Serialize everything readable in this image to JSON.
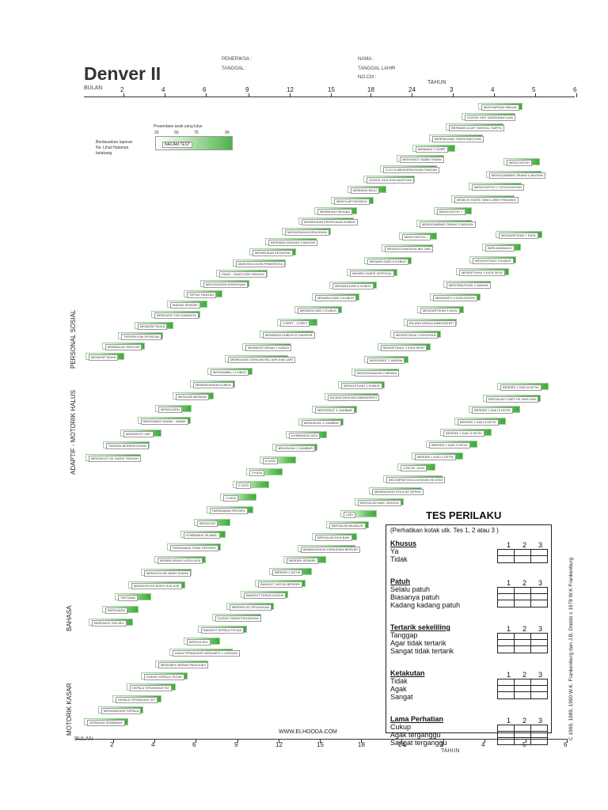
{
  "title": "Denver II",
  "header": {
    "pemeriksa": "PEMERIKSA :",
    "tanggal": "TANGGAL :",
    "nama": "NAMA :",
    "tanggal_lahir": "TANGGAL LAHIR",
    "no_cm": "NO.CM :"
  },
  "axis": {
    "bulan_label": "BULAN",
    "tahun_label": "TAHUN",
    "months": [
      "2",
      "4",
      "6",
      "9",
      "12",
      "15",
      "18",
      "24"
    ],
    "years": [
      "3",
      "4",
      "5",
      "6"
    ]
  },
  "legend": {
    "caption": "Prosentase anak yang lulus",
    "pcts": [
      "25",
      "50",
      "75",
      "90"
    ],
    "sample_item": "NACAM TEST",
    "note": "Berdasarkan laporan\nNo. Lihat Halaman\nbelakang"
  },
  "sections": {
    "personal_sosial": "PERSONAL SOSIAL",
    "motorik_halus": "ADAPTIF - MOTORIK HALUS",
    "bahasa": "BAHASA",
    "motorik_kasar": "MOTORIK KASAR"
  },
  "items": {
    "personal_sosial": [
      "MENYIAPKAN MAKAN",
      "GOSOK GIGI TANPA BANTUAN",
      "BERMAIN ULAR TANGGA / KARTU",
      "BERPAKAIAN TANPA BANTUAN",
      "MEMAKAI T-SHIRT",
      "MENYEBUT NAMA TEMAN",
      "CUCI & MENGERINGKAN TANGAN",
      "GOSOK GIGI DGN BANTUAN",
      "MEMAKAI BAJU",
      "MENYUAPI BONEKA",
      "MEMBUKA PAKAIAN",
      "MENIRUKAN PEKERJAAN RUMAH",
      "MENYATAKAN KEINGINAN",
      "BERMAIN DENGAN CANGGIR",
      "MENIRUKAN KEGIATAN",
      "MAIN BOLA DGN PEMERIKSA",
      "DAAG - DAAG DGN TANGAN",
      "MENYATAKAN KEINGINAN",
      "TEPUK TANGAN",
      "MAKAN SENDIRI",
      "BEREAKSI THD NAMANYA",
      "MENATAP MUKA",
      "TERSENYUM SPONTAN",
      "MEMBALAS SENYUM",
      "MENATAP MUKA"
    ],
    "motorik_halus": [
      "MENCONTOH",
      "MENGGAMBAR ORANG 6 BAGIAN",
      "MENCONTOH ☐ DITUNJUKKAN",
      "MEMILIH GARIS YANG LEBIH PANJANG",
      "MENCONTOH +",
      "MENGGAMBAR ORANG 3 BAGIAN",
      "MENCONTOH ○",
      "MENGGOYANGKAN IBU JARI",
      "MENARA DARI 8 KUBUS",
      "MENIRU GARIS VERTIKAL",
      "MENARA DARI 6 KUBUS",
      "MENARA DARI 4 KUBUS",
      "MENARA DARI 2 KUBUS",
      "CORET - CORET",
      "MENARUH KUBUS DI CANGKIR",
      "MEMBENTURKAN 2 KUBUS",
      "MEMEGANG DENGAN IBU JARI DAN JARI",
      "MENGAMBIL 2 KUBUS",
      "MEMINDAHKAN KUBUS",
      "MENCARI BENANG",
      "MENGGAPAI",
      "MENGAMATI MANIK - MANIK",
      "MENGIKUTI 180°",
      "TANGAN BERSENTUHAN",
      "MENGIKUTI KE GARIS TENGAH"
    ],
    "bahasa": [
      "MENGARTIKAN 7 KATA",
      "BERLAWANAN 2",
      "MENGHITUNG 5 KUBUS",
      "MENGETAHUI 3 KATA SIFAT",
      "MENYEBUTKAN 4 WARNA",
      "MENGERTI 4 KATA DEPAN",
      "MENGARTIKAN 5 KATA",
      "BICARA SEMUA DIMENGERTI",
      "MENGETAHUI 2 KEGIATAN",
      "MENGETAHUI 2 KATA SIFAT",
      "MENYEBUT 1 WARNA",
      "MENGGUNAKAN 2 BENDA",
      "MENGHITUNG 1 KUBUS",
      "BICARA DENGAN DIMENGERTI",
      "MENYEBUT 4 GAMBAR",
      "MENUNJUK 4 GAMBAR",
      "KOMBINASI KATA",
      "MENUNJUK 2 GAMBAR",
      "6 KATA",
      "3 KATA",
      "2 KATA",
      "1 KATA",
      "PAPA/MAMA SPESIFIK",
      "MENOCEH",
      "KOMBINASI SILABEL",
      "PAPA/MAMA TIDAK SPESIFIK",
      "MENIRU BUNYI KATA-KATA",
      "MENOLEH KE ARAH SUARA",
      "MENOLEH KE BUNYI ICIK-ICIK",
      "TERTAWA",
      "BERSUARA",
      "BEREAKSI THD BEL"
    ],
    "motorik_kasar": [
      "BERDIRI 1 KAKI 6 DETIK",
      "BERJALAN TUMIT KE JARI KAKI",
      "BERDIRI 1 KAKI 5 DETIK",
      "BERDIRI 1 KAKI 4 DETIK",
      "BERDIRI 1 KAKI 3 DETIK",
      "BERDIRI 1 KAKI 2 DETIK",
      "BERDIRI 1 KAKI 1 DETIK",
      "LONCAT JAUH",
      "MELEMPAR BOLA LENGAN KE ATAS",
      "MENENDANG BOLA KE DEPAN",
      "BERJALAN NAIK TANGGA",
      "LARI",
      "BERJALAN MUNDUR",
      "BERJALAN DGN BAIK",
      "MEMBUNGKUK KEMUDIAN BERDIRI",
      "BERDIRI SENDIRI",
      "BERDIRI 2 DETIK",
      "BANGKIT UNTUK BERDIRI",
      "BANGKIT TERUS DUDUK",
      "BERDIRI DG PEGANGAN",
      "DUDUK TANPA PEGANGAN",
      "BANGKIT KEPALA TEGAK",
      "BERGULING",
      "DADA TERANGKAT MENUMPU 1 LENGAN",
      "MENUMPU BEBAN PADA KAKI",
      "DUDUK KEPALA TEGAK",
      "KEPALA TERANGKAT 90°",
      "KEPALA TERANGKAT 45°",
      "MENGANGKAT KEPALA",
      "GERAKAN SEIMBANG"
    ]
  },
  "tes": {
    "title": "TES PERILAKU",
    "subtitle": "(Perhatikan kotak utk. Tes 1, 2 atau 3 )",
    "nums": [
      "1",
      "2",
      "3"
    ],
    "groups": [
      {
        "head": "Khusus",
        "opts": [
          "Ya",
          "Tidak"
        ]
      },
      {
        "head": "Patuh",
        "opts": [
          "Selalu patuh",
          "Biasanya patuh",
          "Kadang kadang patuh"
        ]
      },
      {
        "head": "Tertarik sekeliling",
        "opts": [
          "Tanggap",
          "Agar tidak tertarik",
          "Sangat tidak tertarik"
        ]
      },
      {
        "head": "Ketakutan",
        "opts": [
          "Tidak",
          "Agak",
          "Sangat"
        ]
      },
      {
        "head": "Lama Perhatian",
        "opts": [
          "Cukup",
          "Agak terganggu",
          "Sangat terganggu"
        ]
      }
    ]
  },
  "footer": {
    "website": "WWW.ELHOODA.COM",
    "copyright": "C 1969, 1989, 1990 W.K. Frankenburg dan J.B. Dodds c 1978 W.K Frankenburg"
  }
}
